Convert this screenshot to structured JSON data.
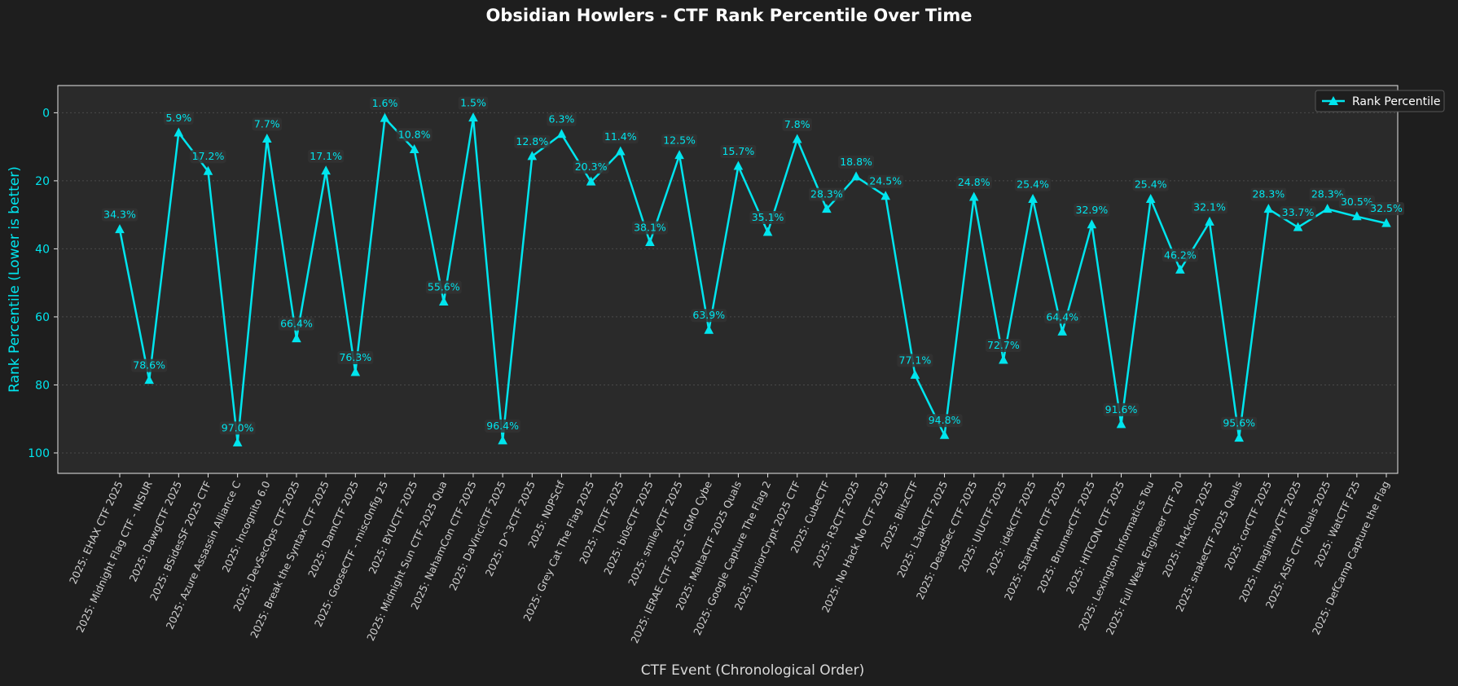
{
  "chart_data": {
    "type": "line",
    "title": "Obsidian Howlers - CTF Rank Percentile Over Time",
    "xlabel": "CTF Event (Chronological Order)",
    "ylabel": "Rank Percentile (Lower is better)",
    "ylim": [
      106,
      -8
    ],
    "y_inverted": true,
    "yticks": [
      0,
      20,
      40,
      60,
      80,
      100
    ],
    "grid": "horizontal dotted",
    "legend_placement": "top-right",
    "colors": {
      "line": "#00e5ee",
      "background": "#1e1e1e",
      "plot_background": "#2a2a2a"
    },
    "categories": [
      "2025: EHAX CTF 2025",
      "2025: Midnight Flag CTF - INSUR",
      "2025: DawgCTF 2025",
      "2025: BSidesSF 2025 CTF",
      "2025: Azure Assassin Alliance C",
      "2025: Incognito 6.0",
      "2025: DevSecOps CTF 2025",
      "2025: Break the Syntax CTF 2025",
      "2025: DamCTF 2025",
      "2025: GooseCTF - misc0nfig 25",
      "2025: BYUCTF 2025",
      "2025: Midnight Sun CTF 2025 Qua",
      "2025: NahamCon CTF 2025",
      "2025: DaVinciCTF 2025",
      "2025: D^3CTF 2025",
      "2025: N0PSctf",
      "2025: Grey Cat The Flag 2025",
      "2025: TJCTF 2025",
      "2025: bi0sCTF 2025",
      "2025: smileyCTF 2025",
      "2025: IERAE CTF 2025 - GMO Cybe",
      "2025: MaltaCTF 2025 Quals",
      "2025: Google Capture The Flag 2",
      "2025: JuniorCrypt 2025 CTF",
      "2025: CubeCTF",
      "2025: R3CTF 2025",
      "2025: No Hack No CTF 2025",
      "2025: BlitzCTF",
      "2025: L3akCTF 2025",
      "2025: DeadSec CTF 2025",
      "2025: UIUCTF 2025",
      "2025: idekCTF 2025",
      "2025: Startpwn CTF 2025",
      "2025: BrunnerCTF 2025",
      "2025: HITCON CTF 2025",
      "2025: Lexington Informatics Tou",
      "2025: Full Weak Engineer CTF 20",
      "2025: h4ckc0n 2025",
      "2025: snakeCTF 2025 Quals",
      "2025: corCTF 2025",
      "2025: ImaginaryCTF 2025",
      "2025: ASIS CTF Quals 2025",
      "2025: WatCTF F25",
      "2025: DefCamp Capture the Flag"
    ],
    "series": [
      {
        "name": "Rank Percentile",
        "marker": "triangle-up",
        "values": [
          34.3,
          78.6,
          5.9,
          17.2,
          97.0,
          7.7,
          66.4,
          17.1,
          76.3,
          1.6,
          10.8,
          55.6,
          1.5,
          96.4,
          12.8,
          6.3,
          20.3,
          11.4,
          38.1,
          12.5,
          63.9,
          15.7,
          35.1,
          7.8,
          28.3,
          18.8,
          24.5,
          77.1,
          94.8,
          24.8,
          72.7,
          25.4,
          64.4,
          32.9,
          91.6,
          25.4,
          46.2,
          32.1,
          95.6,
          28.3,
          33.7,
          28.3,
          30.5,
          32.5
        ],
        "data_labels": [
          "34.3%",
          "78.6%",
          "5.9%",
          "17.2%",
          "97.0%",
          "7.7%",
          "66.4%",
          "17.1%",
          "76.3%",
          "1.6%",
          "10.8%",
          "55.6%",
          "1.5%",
          "96.4%",
          "12.8%",
          "6.3%",
          "20.3%",
          "11.4%",
          "38.1%",
          "12.5%",
          "63.9%",
          "15.7%",
          "35.1%",
          "7.8%",
          "28.3%",
          "18.8%",
          "24.5%",
          "77.1%",
          "94.8%",
          "24.8%",
          "72.7%",
          "25.4%",
          "64.4%",
          "32.9%",
          "91.6%",
          "25.4%",
          "46.2%",
          "32.1%",
          "95.6%",
          "28.3%",
          "33.7%",
          "28.3%",
          "30.5%",
          "32.5%"
        ]
      }
    ]
  }
}
